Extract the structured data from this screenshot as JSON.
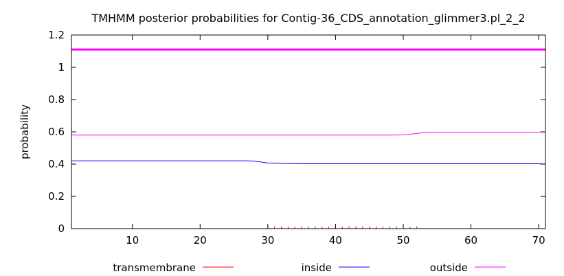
{
  "chart_data": {
    "type": "line",
    "title": "TMHMM posterior probabilities for Contig-36_CDS_annotation_glimmer3.pl_2_2",
    "xlabel": "",
    "ylabel": "probability",
    "xlim": [
      1,
      71
    ],
    "ylim": [
      0,
      1.2
    ],
    "x_ticks": [
      10,
      20,
      30,
      40,
      50,
      60,
      70
    ],
    "y_ticks": [
      0,
      0.2,
      0.4,
      0.6,
      0.8,
      1,
      1.2
    ],
    "x_tick_labels": [
      "10",
      "20",
      "30",
      "40",
      "50",
      "60",
      "70"
    ],
    "y_tick_labels": [
      "0",
      "0.2",
      "0.4",
      "0.6",
      "0.8",
      "1",
      "1.2"
    ],
    "grid": false,
    "legend_position": "bottom",
    "series": [
      {
        "name": "transmembrane",
        "color": "#ff0000",
        "style": "impulses",
        "x": [
          30,
          31,
          32,
          33,
          34,
          35,
          36,
          37,
          38,
          39,
          40,
          41,
          42,
          43,
          44,
          45,
          46,
          47,
          48,
          49,
          50,
          51,
          52
        ],
        "y": [
          0.005,
          0.005,
          0.005,
          0.005,
          0.005,
          0.005,
          0.005,
          0.005,
          0.005,
          0.005,
          0.005,
          0.005,
          0.005,
          0.005,
          0.005,
          0.005,
          0.005,
          0.005,
          0.005,
          0.005,
          0.005,
          0.005,
          0.005
        ]
      },
      {
        "name": "inside",
        "color": "#0000ff",
        "style": "line",
        "x": [
          1,
          27,
          28,
          29,
          30,
          32,
          35,
          40,
          45,
          50,
          52,
          55,
          60,
          65,
          70,
          71
        ],
        "y": [
          0.42,
          0.42,
          0.418,
          0.413,
          0.407,
          0.404,
          0.402,
          0.402,
          0.402,
          0.402,
          0.402,
          0.402,
          0.402,
          0.402,
          0.402,
          0.4
        ]
      },
      {
        "name": "outside",
        "color": "#ff00ff",
        "style": "line",
        "x": [
          1,
          10,
          20,
          30,
          40,
          48,
          50,
          51,
          52,
          53,
          54,
          55,
          60,
          65,
          70,
          71
        ],
        "y": [
          0.58,
          0.58,
          0.58,
          0.58,
          0.58,
          0.58,
          0.581,
          0.585,
          0.59,
          0.595,
          0.598,
          0.598,
          0.598,
          0.598,
          0.598,
          0.6
        ]
      },
      {
        "name": "",
        "color": "#ff00ff",
        "style": "thick-line",
        "x": [
          1,
          71
        ],
        "y": [
          1.11,
          1.11
        ]
      }
    ]
  }
}
